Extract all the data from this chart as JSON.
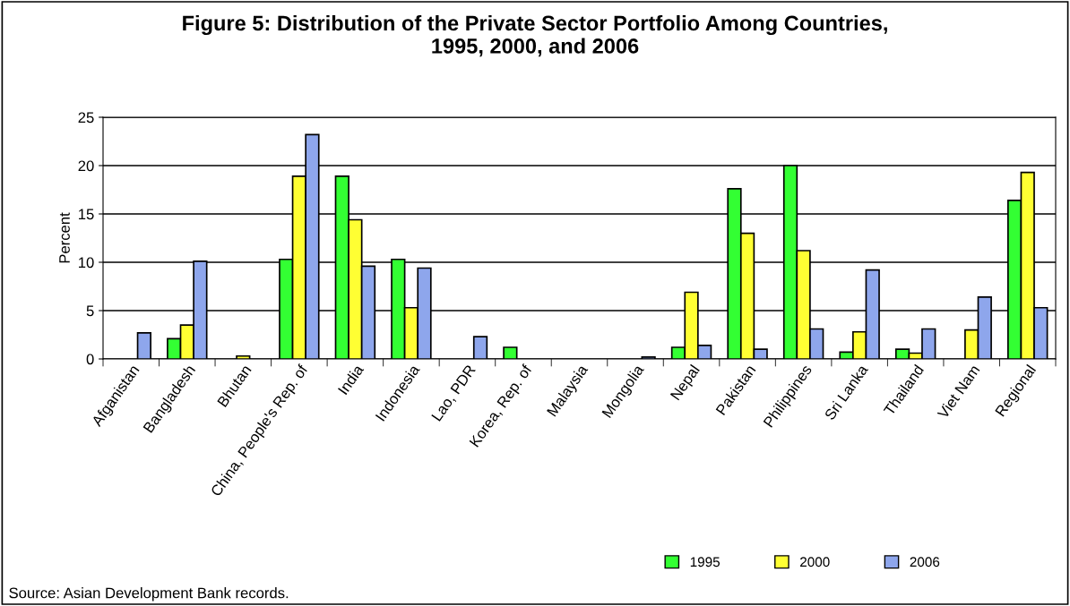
{
  "chart_data": {
    "type": "bar",
    "title": "Figure 5: Distribution of the Private Sector Portfolio Among Countries,\n1995, 2000, and 2006",
    "ylabel": "Percent",
    "categories": [
      "Afganistan",
      "Bangladesh",
      "Bhutan",
      "China, People's Rep. of",
      "India",
      "Indonesia",
      "Lao, PDR",
      "Korea, Rep. of",
      "Malaysia",
      "Mongolia",
      "Nepal",
      "Pakistan",
      "Philippines",
      "Sri Lanka",
      "Thailand",
      "Viet Nam",
      "Regional"
    ],
    "series": [
      {
        "name": "1995",
        "color": "#33ff33",
        "values": [
          null,
          2.1,
          null,
          10.3,
          18.9,
          10.3,
          null,
          1.2,
          null,
          null,
          1.2,
          17.6,
          20.0,
          0.7,
          1.0,
          null,
          16.4
        ]
      },
      {
        "name": "2000",
        "color": "#ffff33",
        "values": [
          null,
          3.5,
          0.3,
          18.9,
          14.4,
          5.3,
          null,
          null,
          null,
          null,
          6.9,
          13.0,
          11.2,
          2.8,
          0.6,
          3.0,
          19.3
        ]
      },
      {
        "name": "2006",
        "color": "#8ea6ec",
        "values": [
          2.7,
          10.1,
          null,
          23.2,
          9.6,
          9.4,
          2.3,
          null,
          null,
          0.2,
          1.4,
          1.0,
          3.1,
          9.2,
          3.1,
          6.4,
          5.3
        ]
      }
    ],
    "ylim": [
      0,
      25
    ],
    "yticks": [
      0,
      5,
      10,
      15,
      20,
      25
    ],
    "grid": "y",
    "legend": "bottom",
    "annotations": [
      "Source: Asian Development Bank records."
    ]
  }
}
